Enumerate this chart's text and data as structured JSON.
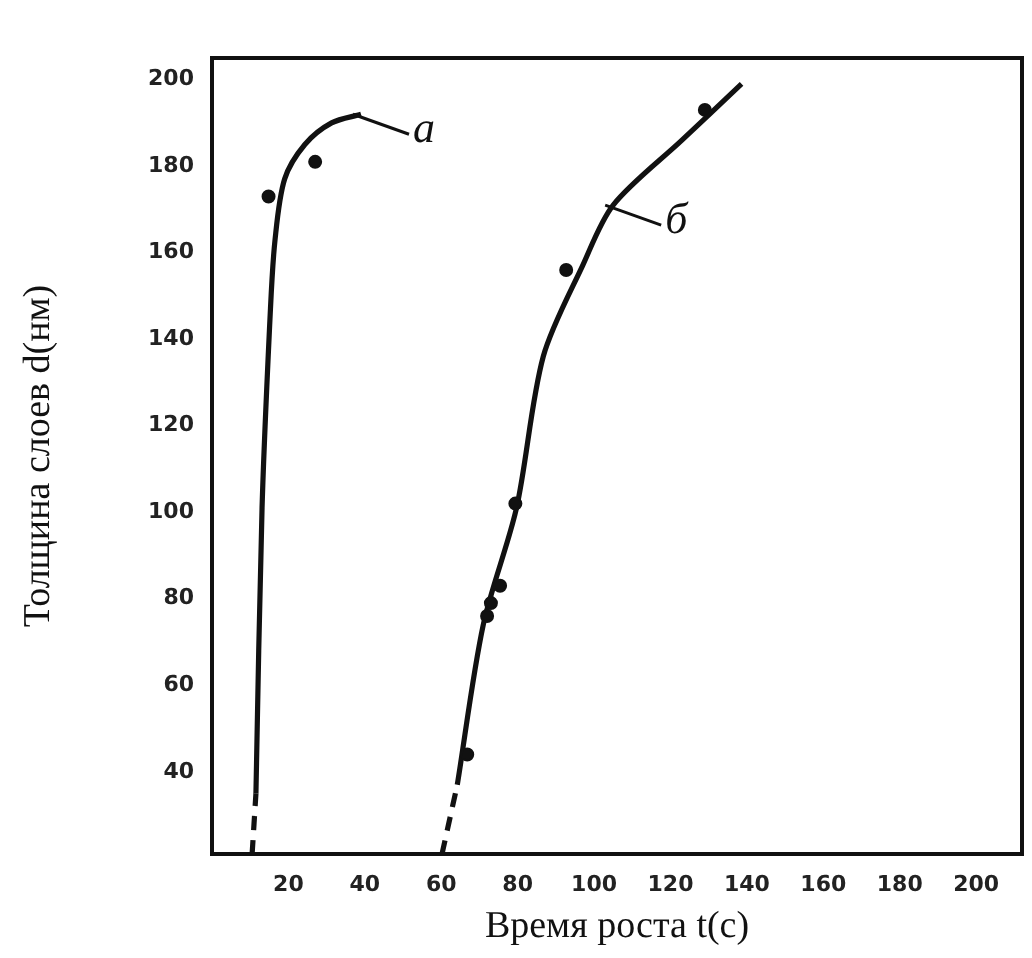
{
  "chart_data": {
    "type": "line",
    "xlabel": "Время роста t(с)",
    "ylabel": "Толщина слоев d(нм)",
    "xlim": [
      0,
      212
    ],
    "ylim": [
      21,
      205
    ],
    "xticks": [
      20,
      40,
      60,
      80,
      100,
      120,
      140,
      160,
      180,
      200
    ],
    "yticks": [
      40,
      60,
      80,
      100,
      120,
      140,
      160,
      180,
      200
    ],
    "grid": false,
    "legend": false,
    "series": [
      {
        "color": "#111111",
        "line_style": "dashed",
        "marker": "none",
        "x": [
          10.5,
          11.5
        ],
        "values": [
          21,
          35
        ]
      },
      {
        "color": "#111111",
        "line_style": "solid",
        "marker": "none",
        "x": [
          11.5,
          13.1,
          15.3,
          16.5,
          19,
          24.3,
          31.3,
          39
        ],
        "values": [
          35,
          101,
          147,
          163,
          177,
          185,
          190,
          192
        ]
      },
      {
        "type": "scatter",
        "color": "#111111",
        "marker": "circle",
        "x": [
          14.8,
          27
        ],
        "values": [
          173,
          181
        ]
      },
      {
        "color": "#111111",
        "line_style": "dashed",
        "marker": "none",
        "x": [
          60.2,
          64.2
        ],
        "values": [
          21,
          37
        ]
      },
      {
        "color": "#111111",
        "line_style": "solid",
        "marker": "none",
        "x": [
          64.2,
          71,
          79.7,
          86.7,
          97,
          105,
          123,
          138.6
        ],
        "values": [
          37,
          74,
          101,
          136,
          157,
          171,
          186,
          199
        ]
      },
      {
        "type": "scatter",
        "color": "#111111",
        "marker": "circle",
        "x": [
          66.8,
          72,
          73,
          75.4,
          79.4,
          92.7,
          129
        ],
        "values": [
          44,
          76,
          79,
          83,
          102,
          156,
          193
        ]
      }
    ],
    "annotations": [
      {
        "text": "а",
        "x": 39,
        "y": 192
      },
      {
        "text": "б",
        "x": 105,
        "y": 171
      }
    ]
  }
}
